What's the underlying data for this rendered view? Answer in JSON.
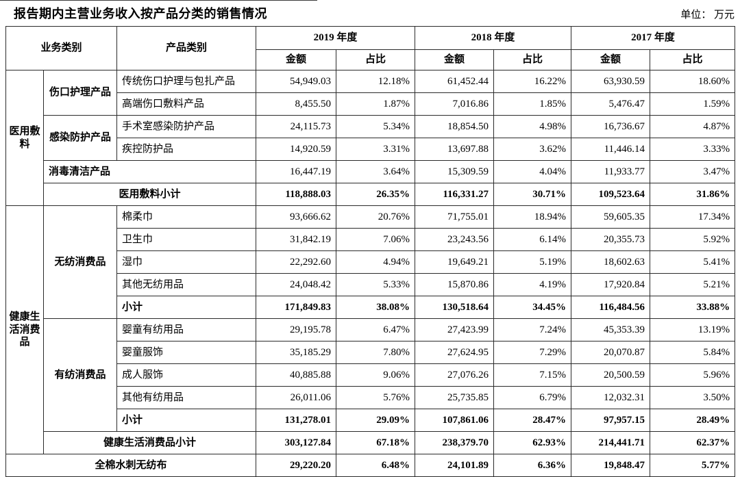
{
  "page": {
    "title": "报告期内主营业务收入按产品分类的销售情况",
    "unit_label": "单位： 万元"
  },
  "table": {
    "header": {
      "business_category": "业务类别",
      "product_category": "产品类别",
      "years": [
        "2019 年度",
        "2018 年度",
        "2017 年度"
      ],
      "amount_label": "金额",
      "ratio_label": "占比"
    },
    "rows": [
      {
        "cells": [
          {
            "text": "医用敷料",
            "rowspan": 6,
            "type": "group"
          },
          {
            "text": "伤口护理产品",
            "rowspan": 2,
            "type": "subgroup"
          },
          {
            "text": "传统伤口护理与包扎产品",
            "type": "product"
          }
        ],
        "values": [
          "54,949.03",
          "12.18%",
          "61,452.44",
          "16.22%",
          "63,930.59",
          "18.60%"
        ],
        "bold_values": false
      },
      {
        "cells": [
          {
            "text": "高端伤口敷料产品",
            "type": "product"
          }
        ],
        "values": [
          "8,455.50",
          "1.87%",
          "7,016.86",
          "1.85%",
          "5,476.47",
          "1.59%"
        ],
        "bold_values": false
      },
      {
        "cells": [
          {
            "text": "感染防护产品",
            "rowspan": 2,
            "type": "subgroup"
          },
          {
            "text": "手术室感染防护产品",
            "type": "product"
          }
        ],
        "values": [
          "24,115.73",
          "5.34%",
          "18,854.50",
          "4.98%",
          "16,736.67",
          "4.87%"
        ],
        "bold_values": false
      },
      {
        "cells": [
          {
            "text": "疾控防护品",
            "type": "product"
          }
        ],
        "values": [
          "14,920.59",
          "3.31%",
          "13,697.88",
          "3.62%",
          "11,446.14",
          "3.33%"
        ],
        "bold_values": false
      },
      {
        "cells": [
          {
            "text": "消毒清洁产品",
            "colspan": 2,
            "type": "subgroup-left"
          }
        ],
        "values": [
          "16,447.19",
          "3.64%",
          "15,309.59",
          "4.04%",
          "11,933.77",
          "3.47%"
        ],
        "bold_values": false
      },
      {
        "cells": [
          {
            "text": "医用敷料小计",
            "colspan": 2,
            "type": "subtotal-center"
          }
        ],
        "values": [
          "118,888.03",
          "26.35%",
          "116,331.27",
          "30.71%",
          "109,523.64",
          "31.86%"
        ],
        "bold_values": true
      },
      {
        "cells": [
          {
            "text": "健康生活消费品",
            "rowspan": 11,
            "type": "group"
          },
          {
            "text": "无纺消费品",
            "rowspan": 5,
            "type": "subgroup"
          },
          {
            "text": "棉柔巾",
            "type": "product"
          }
        ],
        "values": [
          "93,666.62",
          "20.76%",
          "71,755.01",
          "18.94%",
          "59,605.35",
          "17.34%"
        ],
        "bold_values": false
      },
      {
        "cells": [
          {
            "text": "卫生巾",
            "type": "product"
          }
        ],
        "values": [
          "31,842.19",
          "7.06%",
          "23,243.56",
          "6.14%",
          "20,355.73",
          "5.92%"
        ],
        "bold_values": false
      },
      {
        "cells": [
          {
            "text": "湿巾",
            "type": "product"
          }
        ],
        "values": [
          "22,292.60",
          "4.94%",
          "19,649.21",
          "5.19%",
          "18,602.63",
          "5.41%"
        ],
        "bold_values": false
      },
      {
        "cells": [
          {
            "text": "其他无纺用品",
            "type": "product"
          }
        ],
        "values": [
          "24,048.42",
          "5.33%",
          "15,870.86",
          "4.19%",
          "17,920.84",
          "5.21%"
        ],
        "bold_values": false
      },
      {
        "cells": [
          {
            "text": "小计",
            "type": "subtotal-left"
          }
        ],
        "values": [
          "171,849.83",
          "38.08%",
          "130,518.64",
          "34.45%",
          "116,484.56",
          "33.88%"
        ],
        "bold_values": true
      },
      {
        "cells": [
          {
            "text": "有纺消费品",
            "rowspan": 5,
            "type": "subgroup"
          },
          {
            "text": "婴童有纺用品",
            "type": "product"
          }
        ],
        "values": [
          "29,195.78",
          "6.47%",
          "27,423.99",
          "7.24%",
          "45,353.39",
          "13.19%"
        ],
        "bold_values": false
      },
      {
        "cells": [
          {
            "text": "婴童服饰",
            "type": "product"
          }
        ],
        "values": [
          "35,185.29",
          "7.80%",
          "27,624.95",
          "7.29%",
          "20,070.87",
          "5.84%"
        ],
        "bold_values": false
      },
      {
        "cells": [
          {
            "text": "成人服饰",
            "type": "product"
          }
        ],
        "values": [
          "40,885.88",
          "9.06%",
          "27,076.26",
          "7.15%",
          "20,500.59",
          "5.96%"
        ],
        "bold_values": false
      },
      {
        "cells": [
          {
            "text": "其他有纺用品",
            "type": "product"
          }
        ],
        "values": [
          "26,011.06",
          "5.76%",
          "25,735.85",
          "6.79%",
          "12,032.31",
          "3.50%"
        ],
        "bold_values": false
      },
      {
        "cells": [
          {
            "text": "小计",
            "type": "subtotal-left"
          }
        ],
        "values": [
          "131,278.01",
          "29.09%",
          "107,861.06",
          "28.47%",
          "97,957.15",
          "28.49%"
        ],
        "bold_values": true
      },
      {
        "cells": [
          {
            "text": "健康生活消费品小计",
            "colspan": 2,
            "type": "subtotal-center"
          }
        ],
        "values": [
          "303,127.84",
          "67.18%",
          "238,379.70",
          "62.93%",
          "214,441.71",
          "62.37%"
        ],
        "bold_values": true
      },
      {
        "cells": [
          {
            "text": "全棉水刺无纺布",
            "colspan": 3,
            "type": "subtotal-center"
          }
        ],
        "values": [
          "29,220.20",
          "6.48%",
          "24,101.89",
          "6.36%",
          "19,848.47",
          "5.77%"
        ],
        "bold_values": true
      }
    ]
  }
}
